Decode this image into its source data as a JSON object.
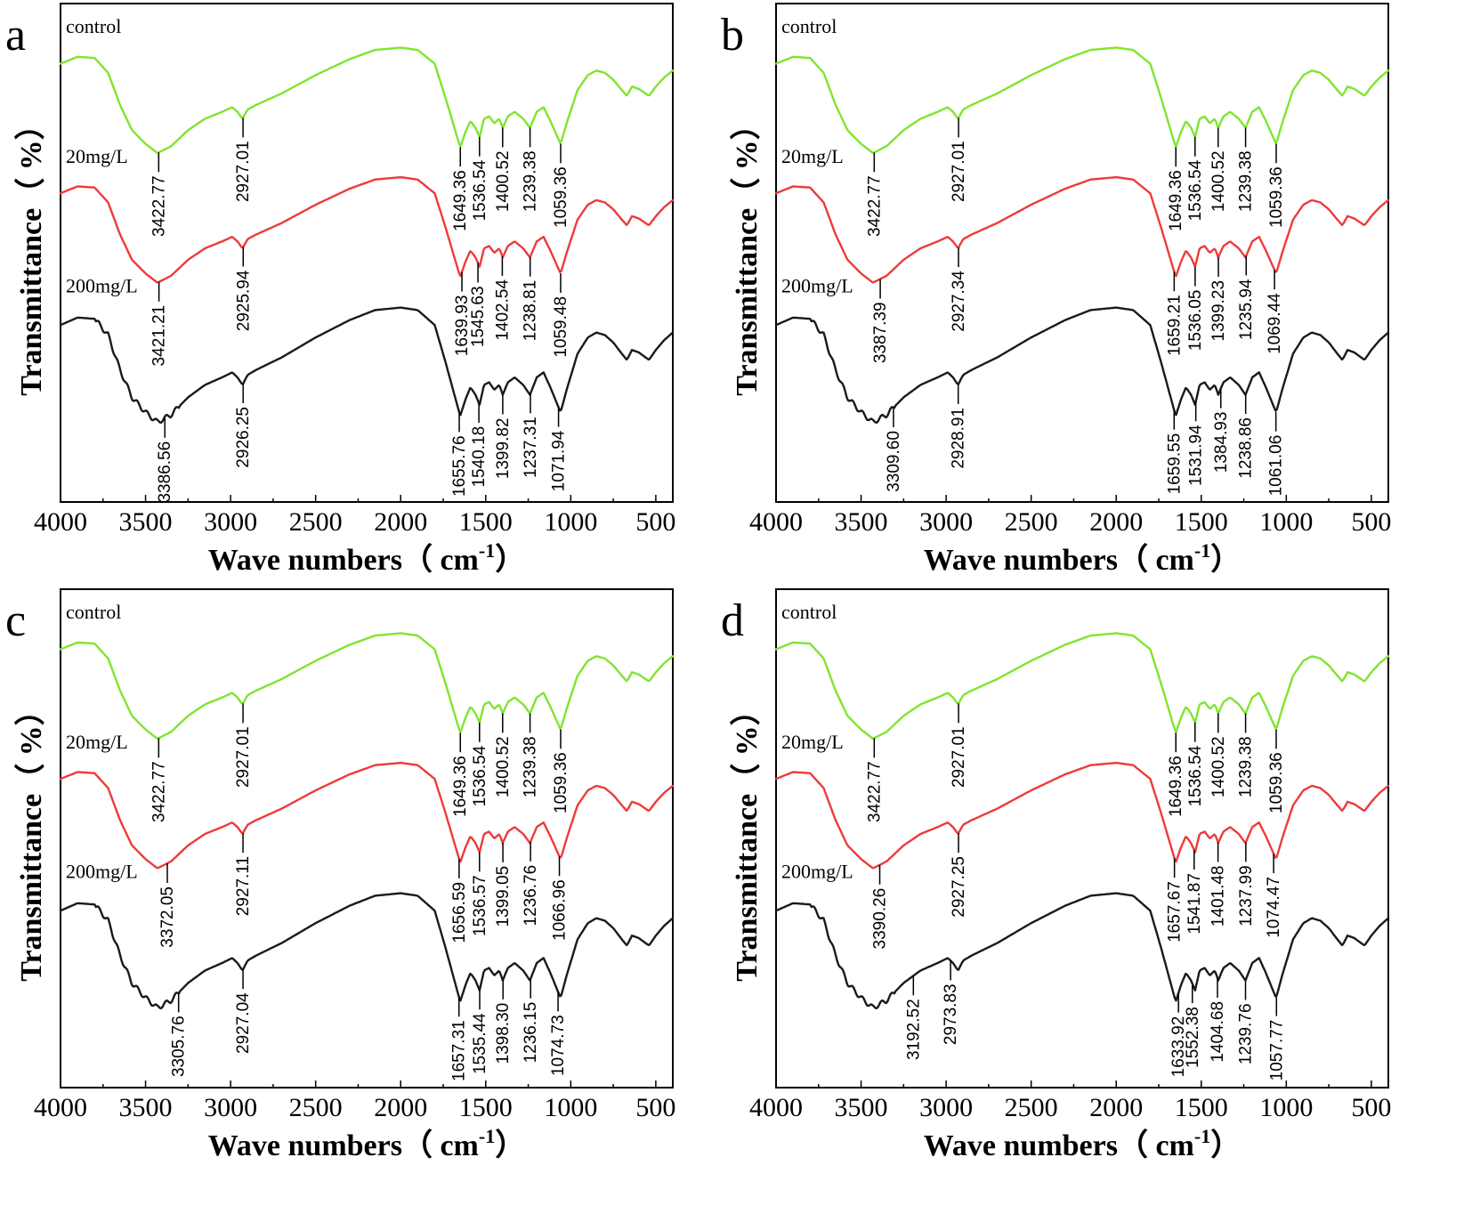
{
  "colors": {
    "control": "#7fe52e",
    "20mg/L": "#ee3a3a",
    "200mg/L": "#1a1a1a"
  },
  "chart_data": [
    {
      "type": "line",
      "panel": "a",
      "xlabel": "Wave numbers（ cm",
      "xlabel_sup": "-1",
      "xlabel_end": "）",
      "ylabel": "Transmittance（ %）",
      "xlim": [
        4000,
        400
      ],
      "xticks": [
        4000,
        3500,
        3000,
        2500,
        2000,
        1500,
        1000,
        500
      ],
      "series": [
        {
          "name": "control",
          "peaks": [
            {
              "x": 3422.77,
              "label": "3422.77"
            },
            {
              "x": 2927.01,
              "label": "2927.01"
            },
            {
              "x": 1649.36,
              "label": "1649.36"
            },
            {
              "x": 1536.54,
              "label": "1536.54"
            },
            {
              "x": 1400.52,
              "label": "1400.52"
            },
            {
              "x": 1239.38,
              "label": "1239.38"
            },
            {
              "x": 1059.36,
              "label": "1059.36"
            }
          ]
        },
        {
          "name": "20mg/L",
          "peaks": [
            {
              "x": 3421.21,
              "label": "3421.21"
            },
            {
              "x": 2925.94,
              "label": "2925.94"
            },
            {
              "x": 1639.93,
              "label": "1639.93"
            },
            {
              "x": 1545.63,
              "label": "1545.63"
            },
            {
              "x": 1402.54,
              "label": "1402.54"
            },
            {
              "x": 1238.81,
              "label": "1238.81"
            },
            {
              "x": 1059.48,
              "label": "1059.48"
            }
          ]
        },
        {
          "name": "200mg/L",
          "peaks": [
            {
              "x": 3386.56,
              "label": "3386.56"
            },
            {
              "x": 2926.25,
              "label": "2926.25"
            },
            {
              "x": 1655.76,
              "label": "1655.76"
            },
            {
              "x": 1540.18,
              "label": "1540.18"
            },
            {
              "x": 1399.82,
              "label": "1399.82"
            },
            {
              "x": 1237.31,
              "label": "1237.31"
            },
            {
              "x": 1071.94,
              "label": "1071.94"
            }
          ]
        }
      ]
    },
    {
      "type": "line",
      "panel": "b",
      "xlabel": "Wave numbers（ cm",
      "xlabel_sup": "-1",
      "xlabel_end": "）",
      "ylabel": "Transmittance（ %）",
      "xlim": [
        4000,
        400
      ],
      "xticks": [
        4000,
        3500,
        3000,
        2500,
        2000,
        1500,
        1000,
        500
      ],
      "series": [
        {
          "name": "control",
          "peaks": [
            {
              "x": 3422.77,
              "label": "3422.77"
            },
            {
              "x": 2927.01,
              "label": "2927.01"
            },
            {
              "x": 1649.36,
              "label": "1649.36"
            },
            {
              "x": 1536.54,
              "label": "1536.54"
            },
            {
              "x": 1400.52,
              "label": "1400.52"
            },
            {
              "x": 1239.38,
              "label": "1239.38"
            },
            {
              "x": 1059.36,
              "label": "1059.36"
            }
          ]
        },
        {
          "name": "20mg/L",
          "peaks": [
            {
              "x": 3387.39,
              "label": "3387.39"
            },
            {
              "x": 2927.34,
              "label": "2927.34"
            },
            {
              "x": 1659.21,
              "label": "1659.21"
            },
            {
              "x": 1536.05,
              "label": "1536.05"
            },
            {
              "x": 1399.23,
              "label": "1399.23"
            },
            {
              "x": 1235.94,
              "label": "1235.94"
            },
            {
              "x": 1069.44,
              "label": "1069.44"
            }
          ]
        },
        {
          "name": "200mg/L",
          "peaks": [
            {
              "x": 3309.6,
              "label": "3309.60"
            },
            {
              "x": 2928.91,
              "label": "2928.91"
            },
            {
              "x": 1659.55,
              "label": "1659.55"
            },
            {
              "x": 1531.94,
              "label": "1531.94"
            },
            {
              "x": 1384.93,
              "label": "1384.93"
            },
            {
              "x": 1238.86,
              "label": "1238.86"
            },
            {
              "x": 1061.06,
              "label": "1061.06"
            }
          ]
        }
      ]
    },
    {
      "type": "line",
      "panel": "c",
      "xlabel": "Wave numbers（ cm",
      "xlabel_sup": "-1",
      "xlabel_end": "）",
      "ylabel": "Transmittance（ %）",
      "xlim": [
        4000,
        400
      ],
      "xticks": [
        4000,
        3500,
        3000,
        2500,
        2000,
        1500,
        1000,
        500
      ],
      "series": [
        {
          "name": "control",
          "peaks": [
            {
              "x": 3422.77,
              "label": "3422.77"
            },
            {
              "x": 2927.01,
              "label": "2927.01"
            },
            {
              "x": 1649.36,
              "label": "1649.36"
            },
            {
              "x": 1536.54,
              "label": "1536.54"
            },
            {
              "x": 1400.52,
              "label": "1400.52"
            },
            {
              "x": 1239.38,
              "label": "1239.38"
            },
            {
              "x": 1059.36,
              "label": "1059.36"
            }
          ]
        },
        {
          "name": "20mg/L",
          "peaks": [
            {
              "x": 3372.05,
              "label": "3372.05"
            },
            {
              "x": 2927.11,
              "label": "2927.11"
            },
            {
              "x": 1656.59,
              "label": "1656.59"
            },
            {
              "x": 1536.57,
              "label": "1536.57"
            },
            {
              "x": 1399.05,
              "label": "1399.05"
            },
            {
              "x": 1236.76,
              "label": "1236.76"
            },
            {
              "x": 1066.96,
              "label": "1066.96"
            }
          ]
        },
        {
          "name": "200mg/L",
          "peaks": [
            {
              "x": 3305.76,
              "label": "3305.76"
            },
            {
              "x": 2927.04,
              "label": "2927.04"
            },
            {
              "x": 1657.31,
              "label": "1657.31"
            },
            {
              "x": 1535.44,
              "label": "1535.44"
            },
            {
              "x": 1398.3,
              "label": "1398.30"
            },
            {
              "x": 1236.15,
              "label": "1236.15"
            },
            {
              "x": 1074.73,
              "label": "1074.73"
            }
          ]
        }
      ]
    },
    {
      "type": "line",
      "panel": "d",
      "xlabel": "Wave numbers（ cm",
      "xlabel_sup": "-1",
      "xlabel_end": "）",
      "ylabel": "Transmittance（ %）",
      "xlim": [
        4000,
        400
      ],
      "xticks": [
        4000,
        3500,
        3000,
        2500,
        2000,
        1500,
        1000,
        500
      ],
      "series": [
        {
          "name": "control",
          "peaks": [
            {
              "x": 3422.77,
              "label": "3422.77"
            },
            {
              "x": 2927.01,
              "label": "2927.01"
            },
            {
              "x": 1649.36,
              "label": "1649.36"
            },
            {
              "x": 1536.54,
              "label": "1536.54"
            },
            {
              "x": 1400.52,
              "label": "1400.52"
            },
            {
              "x": 1239.38,
              "label": "1239.38"
            },
            {
              "x": 1059.36,
              "label": "1059.36"
            }
          ]
        },
        {
          "name": "20mg/L",
          "peaks": [
            {
              "x": 3390.26,
              "label": "3390.26"
            },
            {
              "x": 2927.25,
              "label": "2927.25"
            },
            {
              "x": 1657.67,
              "label": "1657.67"
            },
            {
              "x": 1541.87,
              "label": "1541.87"
            },
            {
              "x": 1401.48,
              "label": "1401.48"
            },
            {
              "x": 1237.99,
              "label": "1237.99"
            },
            {
              "x": 1074.47,
              "label": "1074.47"
            }
          ]
        },
        {
          "name": "200mg/L",
          "peaks": [
            {
              "x": 3192.52,
              "label": "3192.52"
            },
            {
              "x": 2973.83,
              "label": "2973.83"
            },
            {
              "x": 1633.92,
              "label": "1633.92"
            },
            {
              "x": 1552.38,
              "label": "1552.38"
            },
            {
              "x": 1404.68,
              "label": "1404.68"
            },
            {
              "x": 1239.76,
              "label": "1239.76"
            },
            {
              "x": 1057.77,
              "label": "1057.77"
            }
          ]
        }
      ]
    }
  ]
}
